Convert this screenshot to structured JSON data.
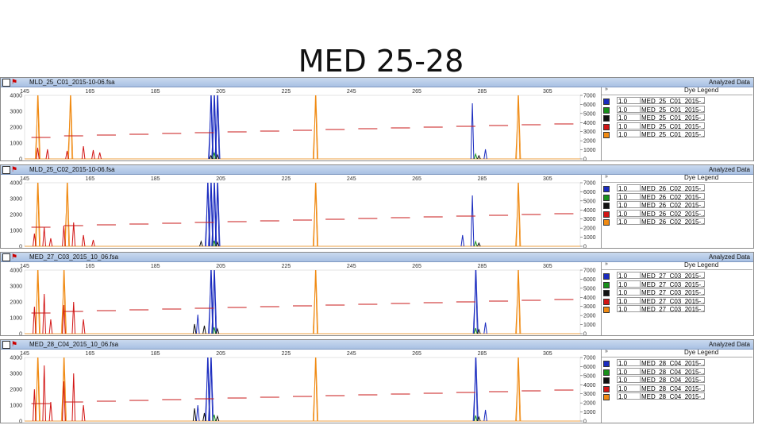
{
  "title": "MED 25-28",
  "colors": {
    "blue": "#1a2bbf",
    "green": "#17901a",
    "black": "#111111",
    "red": "#d21515",
    "orange": "#f08a12",
    "sizing": "#c81818"
  },
  "panels": [
    {
      "file": "MLD_25_C01_2015-10-06.fsa",
      "status": "Analyzed Data",
      "left_ticks": [
        "4000",
        "3000",
        "2000",
        "1000",
        "0"
      ],
      "right_ticks": [
        "7000",
        "6000",
        "5000",
        "4000",
        "3000",
        "2000",
        "1000",
        "0"
      ],
      "legend_title": "Dye Legend",
      "legend": [
        {
          "color": "blue",
          "value": "1.0",
          "name": "MED_25_C01_2015-..."
        },
        {
          "color": "green",
          "value": "1.0",
          "name": "MED_25_C01_2015-..."
        },
        {
          "color": "black",
          "value": "1.0",
          "name": "MED_25_C01_2015-..."
        },
        {
          "color": "red",
          "value": "1.0",
          "name": "MED_25_C01_2015-..."
        },
        {
          "color": "orange",
          "value": "1.0",
          "name": "MED_25_C01_2015-..."
        }
      ]
    },
    {
      "file": "MLD_25_C02_2015-10-06.fsa",
      "status": "Analyzed Data",
      "left_ticks": [
        "4000",
        "3000",
        "2000",
        "1000",
        "0"
      ],
      "right_ticks": [
        "7000",
        "6000",
        "5000",
        "4000",
        "3000",
        "2000",
        "1000",
        "0"
      ],
      "legend_title": "Dye Legend",
      "legend": [
        {
          "color": "blue",
          "value": "1.0",
          "name": "MED_26_C02_2015-..."
        },
        {
          "color": "green",
          "value": "1.0",
          "name": "MED_26_C02_2015-..."
        },
        {
          "color": "black",
          "value": "1.0",
          "name": "MED_26_C02_2015-..."
        },
        {
          "color": "red",
          "value": "1.0",
          "name": "MED_26_C02_2015-..."
        },
        {
          "color": "orange",
          "value": "1.0",
          "name": "MED_26_C02_2015-..."
        }
      ]
    },
    {
      "file": "MED_27_C03_2015_10_06.fsa",
      "status": "Analyzed Data",
      "left_ticks": [
        "4000",
        "3000",
        "2000",
        "1000",
        "0"
      ],
      "right_ticks": [
        "7000",
        "6000",
        "5000",
        "4000",
        "3000",
        "2000",
        "1000",
        "0"
      ],
      "legend_title": "Dye Legend",
      "legend": [
        {
          "color": "blue",
          "value": "1.0",
          "name": "MED_27_C03_2015-..."
        },
        {
          "color": "green",
          "value": "1.0",
          "name": "MED_27_C03_2015-..."
        },
        {
          "color": "black",
          "value": "1.0",
          "name": "MED_27_C03_2015-..."
        },
        {
          "color": "red",
          "value": "1.0",
          "name": "MED_27_C03_2015-..."
        },
        {
          "color": "orange",
          "value": "1.0",
          "name": "MED_27_C03_2015-..."
        }
      ]
    },
    {
      "file": "MED_28_C04_2015_10_06.fsa",
      "status": "Analyzed Data",
      "left_ticks": [
        "4000",
        "3000",
        "2000",
        "1000",
        "0"
      ],
      "right_ticks": [
        "7000",
        "6000",
        "5000",
        "4000",
        "3000",
        "2000",
        "1000",
        "0"
      ],
      "legend_title": "Dye Legend",
      "legend": [
        {
          "color": "blue",
          "value": "1.0",
          "name": "MED_28_C04_2015-..."
        },
        {
          "color": "green",
          "value": "1.0",
          "name": "MED_28_C04_2015-..."
        },
        {
          "color": "black",
          "value": "1.0",
          "name": "MED_28_C04_2015-..."
        },
        {
          "color": "red",
          "value": "1.0",
          "name": "MED_28_C04_2015-..."
        },
        {
          "color": "orange",
          "value": "1.0",
          "name": "MED_28_C04_2015-..."
        }
      ]
    }
  ],
  "chart_data": {
    "type": "line",
    "xlim": [
      145,
      315
    ],
    "x_ticks": [
      "145",
      "165",
      "185",
      "205",
      "225",
      "245",
      "265",
      "285",
      "305"
    ],
    "ylim": [
      0,
      4000
    ],
    "ylim_right": [
      0,
      7000
    ],
    "grid": false,
    "panels": [
      {
        "series": [
          {
            "color": "orange",
            "peaks": [
              [
                149,
                4000
              ],
              [
                159,
                4000
              ],
              [
                234,
                4000
              ],
              [
                296,
                4000
              ]
            ]
          },
          {
            "color": "red",
            "peaks": [
              [
                149,
                700
              ],
              [
                152,
                600
              ],
              [
                158,
                500
              ],
              [
                163,
                800
              ],
              [
                166,
                550
              ],
              [
                168,
                400
              ]
            ]
          },
          {
            "color": "blue",
            "peaks": [
              [
                202,
                4000
              ],
              [
                203,
                4000
              ],
              [
                204,
                4000
              ],
              [
                282,
                3500
              ],
              [
                286,
                600
              ]
            ]
          },
          {
            "color": "green",
            "peaks": [
              [
                203,
                400
              ],
              [
                283,
                300
              ]
            ]
          },
          {
            "color": "black",
            "peaks": [
              [
                202,
                200
              ],
              [
                204,
                250
              ],
              [
                284,
                200
              ]
            ]
          }
        ],
        "sizing": [
          [
            150,
            1350
          ],
          [
            160,
            1450
          ],
          [
            170,
            1500
          ],
          [
            180,
            1550
          ],
          [
            190,
            1600
          ],
          [
            200,
            1650
          ],
          [
            210,
            1700
          ],
          [
            220,
            1750
          ],
          [
            230,
            1800
          ],
          [
            240,
            1850
          ],
          [
            250,
            1900
          ],
          [
            260,
            1950
          ],
          [
            270,
            2000
          ],
          [
            280,
            2050
          ],
          [
            290,
            2100
          ],
          [
            300,
            2150
          ],
          [
            310,
            2200
          ]
        ]
      },
      {
        "series": [
          {
            "color": "orange",
            "peaks": [
              [
                149,
                4000
              ],
              [
                158,
                4000
              ],
              [
                234,
                4000
              ],
              [
                296,
                4000
              ]
            ]
          },
          {
            "color": "red",
            "peaks": [
              [
                148,
                800
              ],
              [
                151,
                1200
              ],
              [
                153,
                500
              ],
              [
                157,
                1300
              ],
              [
                160,
                1500
              ],
              [
                163,
                700
              ],
              [
                166,
                400
              ]
            ]
          },
          {
            "color": "blue",
            "peaks": [
              [
                201,
                4000
              ],
              [
                202,
                4000
              ],
              [
                203,
                4000
              ],
              [
                204,
                4000
              ],
              [
                282,
                3200
              ],
              [
                279,
                700
              ]
            ]
          },
          {
            "color": "green",
            "peaks": [
              [
                203,
                350
              ],
              [
                283,
                300
              ]
            ]
          },
          {
            "color": "black",
            "peaks": [
              [
                199,
                300
              ],
              [
                204,
                250
              ],
              [
                284,
                200
              ]
            ]
          }
        ],
        "sizing": [
          [
            150,
            1200
          ],
          [
            160,
            1300
          ],
          [
            170,
            1350
          ],
          [
            180,
            1400
          ],
          [
            190,
            1450
          ],
          [
            200,
            1500
          ],
          [
            210,
            1550
          ],
          [
            220,
            1600
          ],
          [
            230,
            1650
          ],
          [
            240,
            1700
          ],
          [
            250,
            1750
          ],
          [
            260,
            1800
          ],
          [
            270,
            1850
          ],
          [
            280,
            1900
          ],
          [
            290,
            1950
          ],
          [
            300,
            2000
          ],
          [
            310,
            2050
          ]
        ]
      },
      {
        "series": [
          {
            "color": "orange",
            "peaks": [
              [
                149,
                4000
              ],
              [
                157,
                4000
              ],
              [
                234,
                4000
              ],
              [
                296,
                4000
              ]
            ]
          },
          {
            "color": "red",
            "peaks": [
              [
                148,
                1700
              ],
              [
                151,
                2500
              ],
              [
                153,
                900
              ],
              [
                157,
                1800
              ],
              [
                160,
                2000
              ],
              [
                163,
                900
              ]
            ]
          },
          {
            "color": "blue",
            "peaks": [
              [
                202,
                4000
              ],
              [
                203,
                4000
              ],
              [
                198,
                1200
              ],
              [
                283,
                4000
              ],
              [
                286,
                700
              ]
            ]
          },
          {
            "color": "green",
            "peaks": [
              [
                203,
                400
              ],
              [
                283,
                350
              ]
            ]
          },
          {
            "color": "black",
            "peaks": [
              [
                197,
                600
              ],
              [
                200,
                500
              ],
              [
                204,
                300
              ],
              [
                284,
                250
              ]
            ]
          }
        ],
        "sizing": [
          [
            150,
            1300
          ],
          [
            160,
            1400
          ],
          [
            170,
            1450
          ],
          [
            180,
            1500
          ],
          [
            190,
            1550
          ],
          [
            200,
            1600
          ],
          [
            210,
            1650
          ],
          [
            220,
            1700
          ],
          [
            230,
            1750
          ],
          [
            240,
            1800
          ],
          [
            250,
            1850
          ],
          [
            260,
            1900
          ],
          [
            270,
            1950
          ],
          [
            280,
            2000
          ],
          [
            290,
            2050
          ],
          [
            300,
            2100
          ],
          [
            310,
            2150
          ]
        ]
      },
      {
        "series": [
          {
            "color": "orange",
            "peaks": [
              [
                149,
                4000
              ],
              [
                157,
                4000
              ],
              [
                234,
                4000
              ],
              [
                296,
                4000
              ]
            ]
          },
          {
            "color": "red",
            "peaks": [
              [
                148,
                2000
              ],
              [
                151,
                3500
              ],
              [
                153,
                1200
              ],
              [
                157,
                2500
              ],
              [
                160,
                3000
              ],
              [
                163,
                1000
              ]
            ]
          },
          {
            "color": "blue",
            "peaks": [
              [
                201,
                4000
              ],
              [
                202,
                4000
              ],
              [
                198,
                1000
              ],
              [
                283,
                4000
              ],
              [
                286,
                700
              ]
            ]
          },
          {
            "color": "green",
            "peaks": [
              [
                203,
                400
              ],
              [
                283,
                350
              ]
            ]
          },
          {
            "color": "black",
            "peaks": [
              [
                197,
                800
              ],
              [
                200,
                500
              ],
              [
                204,
                300
              ],
              [
                284,
                250
              ]
            ]
          }
        ],
        "sizing": [
          [
            150,
            1100
          ],
          [
            160,
            1200
          ],
          [
            170,
            1250
          ],
          [
            180,
            1300
          ],
          [
            190,
            1350
          ],
          [
            200,
            1400
          ],
          [
            210,
            1450
          ],
          [
            220,
            1500
          ],
          [
            230,
            1550
          ],
          [
            240,
            1600
          ],
          [
            250,
            1650
          ],
          [
            260,
            1700
          ],
          [
            270,
            1750
          ],
          [
            280,
            1800
          ],
          [
            290,
            1850
          ],
          [
            300,
            1900
          ],
          [
            310,
            1950
          ]
        ]
      }
    ]
  }
}
